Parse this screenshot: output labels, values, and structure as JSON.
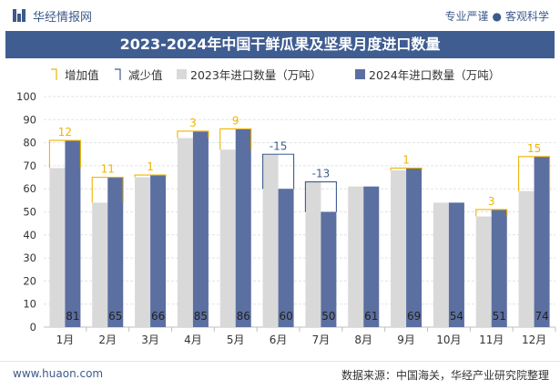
{
  "header": {
    "brand": "华经情报网",
    "slogan_left": "专业严谨",
    "slogan_right": "客观科学"
  },
  "footer": {
    "site": "www.huaon.com",
    "source": "数据来源：中国海关，华经产业研究院整理"
  },
  "chart_data": {
    "type": "bar",
    "title": "2023-2024年中国干鲜瓜果及坚果月度进口数量",
    "categories": [
      "1月",
      "2月",
      "3月",
      "4月",
      "5月",
      "6月",
      "7月",
      "8月",
      "9月",
      "10月",
      "11月",
      "12月"
    ],
    "series": [
      {
        "name": "2023年进口数量（万吨）",
        "values": [
          69,
          54,
          65,
          82,
          77,
          75,
          63,
          61,
          68,
          54,
          48,
          59
        ]
      },
      {
        "name": "2024年进口数量（万吨）",
        "values": [
          81,
          65,
          66,
          85,
          86,
          60,
          50,
          61,
          69,
          54,
          51,
          74
        ]
      }
    ],
    "change_labels": [
      "12",
      "11",
      "1",
      "3",
      "9",
      "-15",
      "-13",
      "",
      "1",
      "",
      "3",
      "15"
    ],
    "legend": [
      "增加值",
      "减少值",
      "2023年进口数量（万吨）",
      "2024年进口数量（万吨）"
    ],
    "ylim": [
      0,
      100
    ],
    "yticks": [
      0,
      10,
      20,
      30,
      40,
      50,
      60,
      70,
      80,
      90,
      100
    ],
    "grid": true,
    "colors": {
      "s2023": "#d9d9d9",
      "s2024": "#5b6fa0",
      "increase": "#f0b400",
      "decrease": "#3f5d91"
    }
  }
}
